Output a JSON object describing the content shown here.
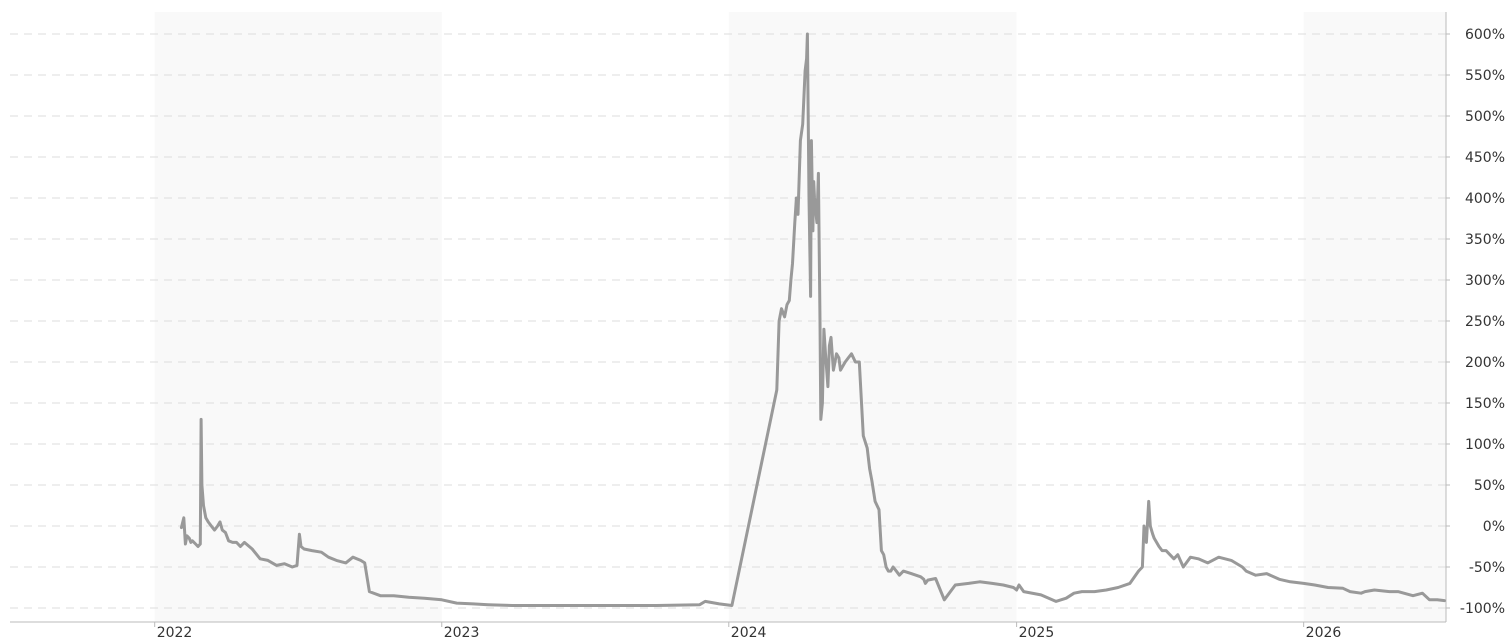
{
  "chart_data": {
    "type": "line",
    "title": "",
    "xlabel": "",
    "ylabel": "",
    "x_tick_labels": [
      "2022",
      "2023",
      "2024",
      "2025",
      "2026"
    ],
    "y_tick_labels": [
      "600%",
      "550%",
      "500%",
      "450%",
      "400%",
      "350%",
      "300%",
      "250%",
      "200%",
      "150%",
      "100%",
      "50%",
      "0%",
      "-50%",
      "-100%"
    ],
    "y_ticks": [
      600,
      550,
      500,
      450,
      400,
      350,
      300,
      250,
      200,
      150,
      100,
      50,
      0,
      -50,
      -100
    ],
    "xlim": [
      "2021-07-01",
      "2026-07-01"
    ],
    "ylim": [
      -110,
      620
    ],
    "grid": true,
    "legend": "none",
    "line_color": "#999999",
    "band_color": "#f9f9f9",
    "shaded_years": [
      "2022",
      "2024",
      "2026"
    ],
    "series": [
      {
        "x": [
          "2022-02-04",
          "2022-02-07",
          "2022-02-09",
          "2022-02-11",
          "2022-02-14",
          "2022-02-16",
          "2022-02-18",
          "2022-02-22",
          "2022-02-25",
          "2022-02-28",
          "2022-03-01",
          "2022-03-02",
          "2022-03-04",
          "2022-03-07",
          "2022-03-10",
          "2022-03-14",
          "2022-03-18",
          "2022-03-22",
          "2022-03-25",
          "2022-03-28",
          "2022-04-01",
          "2022-04-05",
          "2022-04-10",
          "2022-04-15",
          "2022-04-20",
          "2022-04-25",
          "2022-05-05",
          "2022-05-15",
          "2022-05-25",
          "2022-06-05",
          "2022-06-15",
          "2022-06-25",
          "2022-07-01",
          "2022-07-04",
          "2022-07-06",
          "2022-07-10",
          "2022-07-20",
          "2022-08-01",
          "2022-08-10",
          "2022-08-20",
          "2022-09-01",
          "2022-09-10",
          "2022-09-20",
          "2022-09-25",
          "2022-10-01",
          "2022-10-15",
          "2022-11-01",
          "2022-11-20",
          "2022-12-10",
          "2023-01-01",
          "2023-01-20",
          "2023-02-10",
          "2023-03-01",
          "2023-04-01",
          "2023-06-01",
          "2023-08-01",
          "2023-10-01",
          "2023-11-25",
          "2023-12-02",
          "2023-12-20",
          "2024-01-05",
          "2024-03-02",
          "2024-03-05",
          "2024-03-08",
          "2024-03-12",
          "2024-03-15",
          "2024-03-18",
          "2024-03-20",
          "2024-03-22",
          "2024-03-25",
          "2024-03-27",
          "2024-03-29",
          "2024-04-01",
          "2024-04-04",
          "2024-04-07",
          "2024-04-09",
          "2024-04-10",
          "2024-04-12",
          "2024-04-14",
          "2024-04-15",
          "2024-04-17",
          "2024-04-18",
          "2024-04-19",
          "2024-04-22",
          "2024-04-24",
          "2024-04-26",
          "2024-04-27",
          "2024-04-29",
          "2024-05-01",
          "2024-05-03",
          "2024-05-06",
          "2024-05-08",
          "2024-05-10",
          "2024-05-13",
          "2024-05-15",
          "2024-05-17",
          "2024-05-20",
          "2024-05-22",
          "2024-05-25",
          "2024-05-28",
          "2024-06-01",
          "2024-06-05",
          "2024-06-10",
          "2024-06-15",
          "2024-06-20",
          "2024-06-25",
          "2024-06-28",
          "2024-07-01",
          "2024-07-05",
          "2024-07-10",
          "2024-07-13",
          "2024-07-16",
          "2024-07-19",
          "2024-07-22",
          "2024-07-25",
          "2024-07-28",
          "2024-08-01",
          "2024-08-05",
          "2024-08-10",
          "2024-08-20",
          "2024-09-01",
          "2024-09-05",
          "2024-09-07",
          "2024-09-10",
          "2024-09-20",
          "2024-10-01",
          "2024-10-15",
          "2024-11-01",
          "2024-11-15",
          "2024-12-01",
          "2024-12-15",
          "2024-12-28",
          "2025-01-01",
          "2025-01-04",
          "2025-01-10",
          "2025-02-01",
          "2025-02-20",
          "2025-03-05",
          "2025-03-15",
          "2025-03-25",
          "2025-04-10",
          "2025-04-25",
          "2025-05-10",
          "2025-05-25",
          "2025-06-05",
          "2025-06-10",
          "2025-06-12",
          "2025-06-15",
          "2025-06-18",
          "2025-06-20",
          "2025-06-23",
          "2025-06-25",
          "2025-06-28",
          "2025-07-01",
          "2025-07-05",
          "2025-07-10",
          "2025-07-20",
          "2025-07-25",
          "2025-08-01",
          "2025-08-10",
          "2025-08-20",
          "2025-09-01",
          "2025-09-15",
          "2025-10-01",
          "2025-10-15",
          "2025-10-20",
          "2025-11-01",
          "2025-11-15",
          "2025-12-01",
          "2025-12-15",
          "2026-01-01",
          "2026-01-15",
          "2026-02-01",
          "2026-02-20",
          "2026-03-01",
          "2026-03-15",
          "2026-03-20",
          "2026-04-01",
          "2026-04-20",
          "2026-05-01",
          "2026-05-20",
          "2026-06-01",
          "2026-06-10",
          "2026-06-20",
          "2026-06-29"
        ],
        "y": [
          -2,
          10,
          -22,
          -12,
          -15,
          -20,
          -18,
          -22,
          -25,
          -22,
          130,
          50,
          25,
          10,
          5,
          0,
          -5,
          0,
          5,
          -5,
          -8,
          -18,
          -20,
          -20,
          -25,
          -20,
          -28,
          -40,
          -42,
          -48,
          -46,
          -50,
          -48,
          -10,
          -25,
          -28,
          -30,
          -32,
          -38,
          -42,
          -45,
          -38,
          -42,
          -45,
          -80,
          -85,
          -85,
          -87,
          -88,
          -90,
          -94,
          -95,
          -96,
          -97,
          -97,
          -97,
          -97,
          -96,
          -92,
          -95,
          -97,
          166,
          250,
          265,
          255,
          270,
          275,
          300,
          320,
          370,
          400,
          380,
          470,
          490,
          555,
          570,
          600,
          400,
          280,
          470,
          360,
          420,
          400,
          370,
          430,
          250,
          130,
          150,
          240,
          210,
          170,
          220,
          230,
          190,
          200,
          210,
          205,
          190,
          195,
          200,
          205,
          210,
          200,
          200,
          110,
          95,
          70,
          55,
          30,
          20,
          -30,
          -35,
          -50,
          -55,
          -55,
          -50,
          -55,
          -60,
          -55,
          -58,
          -62,
          -65,
          -70,
          -66,
          -64,
          -90,
          -72,
          -70,
          -68,
          -70,
          -72,
          -75,
          -78,
          -72,
          -80,
          -84,
          -92,
          -88,
          -82,
          -80,
          -80,
          -78,
          -75,
          -70,
          -55,
          -50,
          0,
          -20,
          30,
          0,
          -10,
          -15,
          -20,
          -25,
          -30,
          -30,
          -40,
          -35,
          -50,
          -38,
          -40,
          -45,
          -38,
          -42,
          -50,
          -55,
          -60,
          -58,
          -65,
          -68,
          -70,
          -72,
          -75,
          -76,
          -80,
          -82,
          -80,
          -78,
          -80,
          -80,
          -85,
          -82,
          -90,
          -90,
          -91
        ]
      }
    ]
  }
}
